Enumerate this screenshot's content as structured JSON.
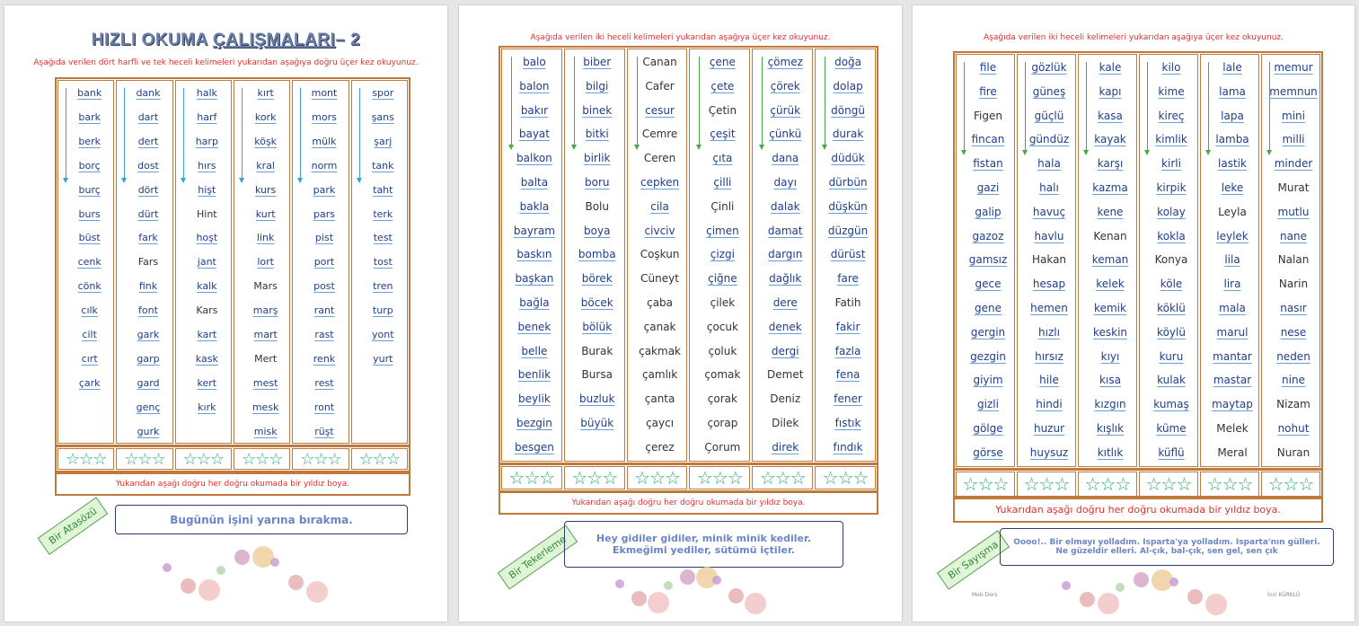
{
  "page1": {
    "title_a": "HIZLI OKUMA ",
    "title_b": "ÇALIŞMALARI",
    "title_c": "– 2",
    "instruction": "Aşağıda verilen dört harfli ve tek heceli kelimeleri yukarıdan aşağıya doğru üçer kez okuyunuz.",
    "columns": [
      [
        "bank",
        "bark",
        "berk",
        "borç",
        "burç",
        "burs",
        "büst",
        "cenk",
        "cönk",
        "cılk",
        "cilt",
        "cırt",
        "çark"
      ],
      [
        "dank",
        "dart",
        "dert",
        "dost",
        "dört",
        "dürt",
        "fark",
        "Fars",
        "fink",
        "font",
        "gark",
        "garp",
        "gard",
        "genç",
        "gurk"
      ],
      [
        "halk",
        "harf",
        "harp",
        "hırs",
        "hişt",
        "Hint",
        "hoşt",
        "jant",
        "kalk",
        "Kars",
        "kart",
        "kask",
        "kert",
        "kırk"
      ],
      [
        "kırt",
        "kork",
        "köşk",
        "kral",
        "kurs",
        "kurt",
        "link",
        "lort",
        "Mars",
        "marş",
        "mart",
        "Mert",
        "mest",
        "mesk",
        "misk"
      ],
      [
        "mont",
        "mors",
        "mülk",
        "norm",
        "park",
        "pars",
        "pist",
        "port",
        "post",
        "rant",
        "rast",
        "renk",
        "rest",
        "ront",
        "rüşt"
      ],
      [
        "spor",
        "şans",
        "şarj",
        "tank",
        "taht",
        "terk",
        "test",
        "tost",
        "tren",
        "turp",
        "yont",
        "yurt"
      ]
    ],
    "plain_words": [
      "Fars",
      "Hint",
      "Kars",
      "Mars",
      "Mert"
    ],
    "footer_note": "Yukarıdan aşağı doğru her doğru okumada bir yıldız boya.",
    "tag": "Bir Atasözü",
    "saying": "Bugünün işini yarına bırakma."
  },
  "page2": {
    "instruction": "Aşağıda verilen iki heceli kelimeleri yukarıdan aşağıya üçer kez okuyunuz.",
    "columns": [
      [
        "balo",
        "balon",
        "bakır",
        "bayat",
        "balkon",
        "balta",
        "bakla",
        "bayram",
        "baskın",
        "başkan",
        "bağla",
        "benek",
        "belle",
        "benlik",
        "beylik",
        "bezgin",
        "besgen"
      ],
      [
        "biber",
        "bilgi",
        "binek",
        "bitki",
        "birlik",
        "boru",
        "Bolu",
        "boya",
        "bomba",
        "börek",
        "böcek",
        "bölük",
        "Burak",
        "Bursa",
        "buzluk",
        "büyük"
      ],
      [
        "Canan",
        "Cafer",
        "cesur",
        "Cemre",
        "Ceren",
        "cepken",
        "cila",
        "civciv",
        "Coşkun",
        "Cüneyt",
        "çaba",
        "çanak",
        "çakmak",
        "çamlık",
        "çanta",
        "çaycı",
        "çerez"
      ],
      [
        "çene",
        "çete",
        "Çetin",
        "çeşit",
        "çıta",
        "çilli",
        "Çinli",
        "çimen",
        "çizgi",
        "çiğne",
        "çilek",
        "çocuk",
        "çoluk",
        "çomak",
        "çorak",
        "çorap",
        "Çorum"
      ],
      [
        "çömez",
        "çörek",
        "çürük",
        "çünkü",
        "dana",
        "dayı",
        "dalak",
        "damat",
        "dargın",
        "dağlık",
        "dere",
        "denek",
        "dergi",
        "Demet",
        "Deniz",
        "Dilek",
        "direk"
      ],
      [
        "doğa",
        "dolap",
        "döngü",
        "durak",
        "düdük",
        "dürbün",
        "düşkün",
        "düzgün",
        "dürüst",
        "fare",
        "Fatih",
        "fakir",
        "fazla",
        "fena",
        "fener",
        "fıstık",
        "fındık"
      ]
    ],
    "plain_words": [
      "Canan",
      "Cafer",
      "Cemre",
      "Ceren",
      "Coşkun",
      "Cüneyt",
      "çaba",
      "çanak",
      "çakmak",
      "çamlık",
      "çanta",
      "çaycı",
      "çerez",
      "Çetin",
      "Çinli",
      "çilek",
      "çocuk",
      "çoluk",
      "çomak",
      "çorak",
      "çorap",
      "Çorum",
      "Demet",
      "Deniz",
      "Dilek",
      "Bolu",
      "Burak",
      "Bursa",
      "Fatih"
    ],
    "footer_note": "Yukarıdan aşağı doğru her doğru okumada bir yıldız boya.",
    "tag": "Bir Tekerleme",
    "saying_line1": "Hey gidiler gidiler, minik minik kediler.",
    "saying_line2": "Ekmeğimi yediler, sütümü içtiler."
  },
  "page3": {
    "instruction": "Aşağıda verilen iki heceli kelimeleri yukarıdan aşağıya üçer kez okuyunuz.",
    "columns": [
      [
        "file",
        "fire",
        "Figen",
        "fincan",
        "fistan",
        "gazi",
        "galip",
        "gazoz",
        "gamsız",
        "gece",
        "gene",
        "gergin",
        "gezgin",
        "giyim",
        "gizli",
        "gölge",
        "görse"
      ],
      [
        "gözlük",
        "güneş",
        "güçlü",
        "gündüz",
        "hala",
        "halı",
        "havuç",
        "havlu",
        "Hakan",
        "hesap",
        "hemen",
        "hızlı",
        "hırsız",
        "hile",
        "hindi",
        "huzur",
        "huysuz"
      ],
      [
        "kale",
        "kapı",
        "kasa",
        "kayak",
        "karşı",
        "kazma",
        "kene",
        "Kenan",
        "keman",
        "kelek",
        "kemik",
        "keskin",
        "kıyı",
        "kısa",
        "kızgın",
        "kışlık",
        "kıtlık"
      ],
      [
        "kilo",
        "kime",
        "kireç",
        "kimlik",
        "kirli",
        "kirpik",
        "kolay",
        "kokla",
        "Konya",
        "köle",
        "köklü",
        "köylü",
        "kuru",
        "kulak",
        "kumaş",
        "küme",
        "küflü"
      ],
      [
        "lale",
        "lama",
        "lapa",
        "lamba",
        "lastik",
        "leke",
        "Leyla",
        "leylek",
        "lila",
        "lira",
        "mala",
        "marul",
        "mantar",
        "mastar",
        "maytap",
        "Melek",
        "Meral"
      ],
      [
        "memur",
        "memnun",
        "mini",
        "milli",
        "minder",
        "Murat",
        "mutlu",
        "nane",
        "Nalan",
        "Narin",
        "nasır",
        "nese",
        "neden",
        "nine",
        "Nizam",
        "nohut",
        "Nuran"
      ]
    ],
    "plain_words": [
      "Figen",
      "Hakan",
      "Kenan",
      "Konya",
      "Leyla",
      "Melek",
      "Meral",
      "Murat",
      "Nalan",
      "Narin",
      "Nizam",
      "Nuran"
    ],
    "footer_note": "Yukarıdan aşağı doğru her doğru okumada bir yıldız boya.",
    "tag": "Bir Sayışma",
    "saying_line1": "Oooo!.. Bir elmayı yolladım. Isparta'ya yolladım. Isparta'nın gülleri.",
    "saying_line2": "Ne güzeldir elleri.  Al-çık, bal-çık, sen gel, sen çık",
    "footer_left": "Meb Ders",
    "footer_right": "İnci KÜRKLÜ"
  },
  "stars_per_cell": "☆☆☆",
  "colors": {
    "frame": "#c0793a",
    "word": "#1f3f8a",
    "underline": "#6aa0d8",
    "red": "#e03030",
    "star": "#2fae7a",
    "arrow_blue": "#3aa0d8",
    "arrow_green": "#4aa84a"
  }
}
